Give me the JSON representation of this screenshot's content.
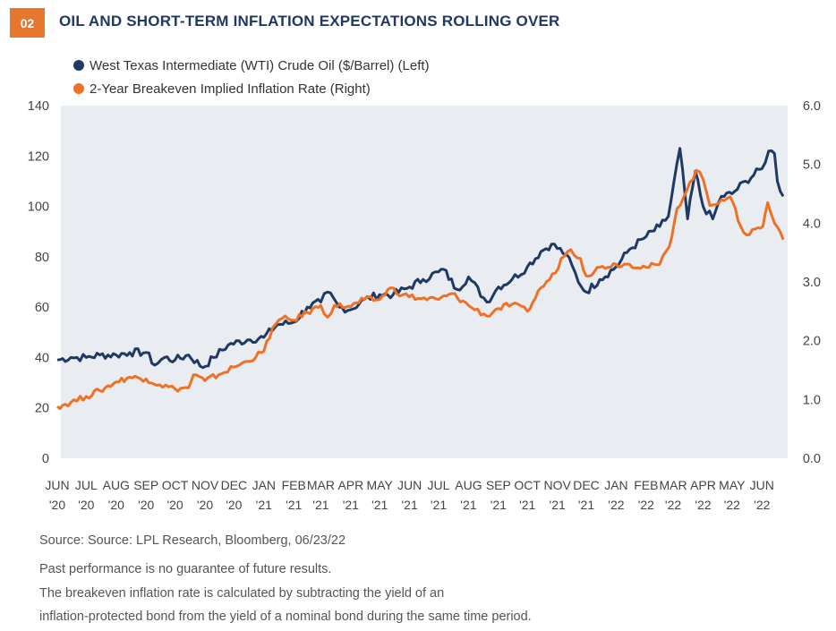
{
  "header": {
    "badge": "02",
    "title": "OIL AND SHORT-TERM INFLATION EXPECTATIONS ROLLING OVER"
  },
  "legend": {
    "items": [
      {
        "label": "West Texas Intermediate (WTI) Crude Oil ($/Barrel) (Left)",
        "color": "#1f3864"
      },
      {
        "label": "2-Year Breakeven Implied Inflation Rate (Right)",
        "color": "#ee7128"
      }
    ]
  },
  "footer": {
    "source": "Source: Source: LPL Research, Bloomberg, 06/23/22",
    "disclaimer": "Past performance is no guarantee of future results.",
    "note_line1": "The breakeven inflation rate is calculated by subtracting the yield of an",
    "note_line2": "inflation-protected bond from the yield of a nominal bond during the same time period."
  },
  "chart_data": {
    "type": "line",
    "plot_background": "#e9ecf0",
    "grid": false,
    "legend_position": "top-left",
    "x_ticks": [
      {
        "month": "JUN",
        "year": "'20"
      },
      {
        "month": "JUL",
        "year": "'20"
      },
      {
        "month": "AUG",
        "year": "'20"
      },
      {
        "month": "SEP",
        "year": "'20"
      },
      {
        "month": "OCT",
        "year": "'20"
      },
      {
        "month": "NOV",
        "year": "'20"
      },
      {
        "month": "DEC",
        "year": "'20"
      },
      {
        "month": "JAN",
        "year": "'21"
      },
      {
        "month": "FEB",
        "year": "'21"
      },
      {
        "month": "MAR",
        "year": "'21"
      },
      {
        "month": "APR",
        "year": "'21"
      },
      {
        "month": "MAY",
        "year": "'21"
      },
      {
        "month": "JUN",
        "year": "'21"
      },
      {
        "month": "JUL",
        "year": "'21"
      },
      {
        "month": "AUG",
        "year": "'21"
      },
      {
        "month": "SEP",
        "year": "'21"
      },
      {
        "month": "OCT",
        "year": "'21"
      },
      {
        "month": "NOV",
        "year": "'21"
      },
      {
        "month": "DEC",
        "year": "'21"
      },
      {
        "month": "JAN",
        "year": "'22"
      },
      {
        "month": "FEB",
        "year": "'22"
      },
      {
        "month": "MAR",
        "year": "'22"
      },
      {
        "month": "APR",
        "year": "'22"
      },
      {
        "month": "MAY",
        "year": "'22"
      },
      {
        "month": "JUN",
        "year": "'22"
      }
    ],
    "y_left": {
      "ticks": [
        "0",
        "20",
        "40",
        "60",
        "80",
        "100",
        "120",
        "140"
      ],
      "range": [
        0,
        140
      ]
    },
    "y_right": {
      "ticks": [
        "0.0",
        "1.0",
        "2.0",
        "3.0",
        "4.0",
        "5.0",
        "6.0"
      ],
      "range": [
        0,
        6
      ]
    },
    "series": [
      {
        "name": "West Texas Intermediate (WTI) Crude Oil ($/Barrel) (Left)",
        "axis": "left",
        "color": "#1f3864",
        "points": [
          [
            "2020-06-01",
            39
          ],
          [
            "2020-06-15",
            40
          ],
          [
            "2020-07-01",
            40
          ],
          [
            "2020-07-15",
            41
          ],
          [
            "2020-08-01",
            41
          ],
          [
            "2020-08-15",
            42
          ],
          [
            "2020-09-01",
            42
          ],
          [
            "2020-09-10",
            37
          ],
          [
            "2020-09-20",
            40
          ],
          [
            "2020-10-01",
            39
          ],
          [
            "2020-10-15",
            41
          ],
          [
            "2020-10-30",
            36
          ],
          [
            "2020-11-10",
            40
          ],
          [
            "2020-11-25",
            45
          ],
          [
            "2020-12-15",
            47
          ],
          [
            "2021-01-01",
            48
          ],
          [
            "2021-01-15",
            53
          ],
          [
            "2021-02-01",
            54
          ],
          [
            "2021-02-15",
            60
          ],
          [
            "2021-03-01",
            62
          ],
          [
            "2021-03-08",
            66
          ],
          [
            "2021-03-20",
            60
          ],
          [
            "2021-04-01",
            59
          ],
          [
            "2021-04-15",
            63
          ],
          [
            "2021-05-01",
            65
          ],
          [
            "2021-05-15",
            65
          ],
          [
            "2021-06-01",
            68
          ],
          [
            "2021-06-15",
            71
          ],
          [
            "2021-07-01",
            74
          ],
          [
            "2021-07-06",
            75
          ],
          [
            "2021-07-20",
            67
          ],
          [
            "2021-08-01",
            72
          ],
          [
            "2021-08-20",
            62
          ],
          [
            "2021-09-01",
            68
          ],
          [
            "2021-09-15",
            71
          ],
          [
            "2021-10-01",
            76
          ],
          [
            "2021-10-15",
            82
          ],
          [
            "2021-10-26",
            85
          ],
          [
            "2021-11-10",
            81
          ],
          [
            "2021-11-26",
            68
          ],
          [
            "2021-12-01",
            66
          ],
          [
            "2021-12-15",
            71
          ],
          [
            "2022-01-01",
            76
          ],
          [
            "2022-01-15",
            83
          ],
          [
            "2022-02-01",
            88
          ],
          [
            "2022-02-15",
            92
          ],
          [
            "2022-02-24",
            96
          ],
          [
            "2022-03-08",
            123
          ],
          [
            "2022-03-16",
            95
          ],
          [
            "2022-03-24",
            114
          ],
          [
            "2022-04-01",
            100
          ],
          [
            "2022-04-11",
            95
          ],
          [
            "2022-04-20",
            104
          ],
          [
            "2022-05-01",
            105
          ],
          [
            "2022-05-15",
            110
          ],
          [
            "2022-06-01",
            115
          ],
          [
            "2022-06-08",
            122
          ],
          [
            "2022-06-14",
            121
          ],
          [
            "2022-06-17",
            110
          ],
          [
            "2022-06-23",
            104
          ]
        ]
      },
      {
        "name": "2-Year Breakeven Implied Inflation Rate (Right)",
        "axis": "right",
        "color": "#ee7128",
        "points": [
          [
            "2020-06-01",
            0.88
          ],
          [
            "2020-06-15",
            0.95
          ],
          [
            "2020-07-01",
            1.05
          ],
          [
            "2020-07-15",
            1.15
          ],
          [
            "2020-08-01",
            1.3
          ],
          [
            "2020-08-15",
            1.38
          ],
          [
            "2020-09-01",
            1.35
          ],
          [
            "2020-09-15",
            1.25
          ],
          [
            "2020-10-01",
            1.18
          ],
          [
            "2020-10-15",
            1.2
          ],
          [
            "2020-10-20",
            1.42
          ],
          [
            "2020-11-01",
            1.32
          ],
          [
            "2020-11-15",
            1.42
          ],
          [
            "2020-12-01",
            1.55
          ],
          [
            "2020-12-15",
            1.65
          ],
          [
            "2021-01-01",
            1.82
          ],
          [
            "2021-01-10",
            2.22
          ],
          [
            "2021-01-20",
            2.38
          ],
          [
            "2021-02-01",
            2.35
          ],
          [
            "2021-02-15",
            2.48
          ],
          [
            "2021-03-01",
            2.6
          ],
          [
            "2021-03-08",
            2.4
          ],
          [
            "2021-03-15",
            2.6
          ],
          [
            "2021-04-01",
            2.58
          ],
          [
            "2021-04-15",
            2.7
          ],
          [
            "2021-05-01",
            2.7
          ],
          [
            "2021-05-12",
            2.9
          ],
          [
            "2021-05-25",
            2.78
          ],
          [
            "2021-06-10",
            2.72
          ],
          [
            "2021-07-01",
            2.7
          ],
          [
            "2021-07-15",
            2.8
          ],
          [
            "2021-08-01",
            2.6
          ],
          [
            "2021-08-20",
            2.42
          ],
          [
            "2021-09-01",
            2.55
          ],
          [
            "2021-09-15",
            2.62
          ],
          [
            "2021-10-01",
            2.5
          ],
          [
            "2021-10-15",
            2.9
          ],
          [
            "2021-10-30",
            3.15
          ],
          [
            "2021-11-05",
            3.4
          ],
          [
            "2021-11-15",
            3.55
          ],
          [
            "2021-11-25",
            3.4
          ],
          [
            "2021-12-01",
            3.1
          ],
          [
            "2021-12-15",
            3.25
          ],
          [
            "2022-01-01",
            3.3
          ],
          [
            "2022-01-15",
            3.3
          ],
          [
            "2022-02-01",
            3.25
          ],
          [
            "2022-02-15",
            3.3
          ],
          [
            "2022-02-25",
            3.6
          ],
          [
            "2022-03-05",
            4.25
          ],
          [
            "2022-03-15",
            4.55
          ],
          [
            "2022-03-25",
            4.9
          ],
          [
            "2022-04-01",
            4.75
          ],
          [
            "2022-04-08",
            4.3
          ],
          [
            "2022-04-20",
            4.4
          ],
          [
            "2022-04-29",
            4.45
          ],
          [
            "2022-05-10",
            3.95
          ],
          [
            "2022-05-16",
            3.8
          ],
          [
            "2022-05-25",
            3.9
          ],
          [
            "2022-06-02",
            3.95
          ],
          [
            "2022-06-07",
            4.35
          ],
          [
            "2022-06-14",
            4.0
          ],
          [
            "2022-06-20",
            3.85
          ],
          [
            "2022-06-23",
            3.72
          ]
        ]
      }
    ]
  }
}
